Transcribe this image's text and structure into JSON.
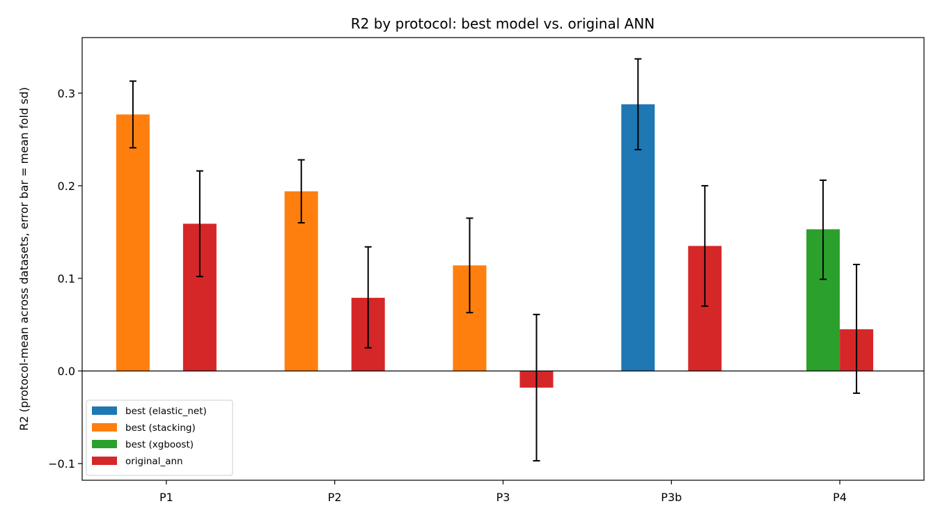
{
  "chart_data": {
    "type": "bar",
    "title": "R2 by protocol: best model vs. original ANN",
    "xlabel": "",
    "ylabel": "R2 (protocol-mean across datasets, error bar = mean fold sd)",
    "ylim": [
      -0.118,
      0.36
    ],
    "yticks": [
      -0.1,
      0.0,
      0.1,
      0.2,
      0.3
    ],
    "ytick_labels": [
      "−0.1",
      "0.0",
      "0.1",
      "0.2",
      "0.3"
    ],
    "categories": [
      "P1",
      "P2",
      "P3",
      "P3b",
      "P4"
    ],
    "grid": false,
    "legend_position": "lower-left",
    "bars": [
      {
        "category": "P1",
        "slot": "best",
        "series": "best (stacking)",
        "value": 0.277,
        "err_low": 0.241,
        "err_high": 0.313
      },
      {
        "category": "P1",
        "slot": "ann",
        "series": "original_ann",
        "value": 0.159,
        "err_low": 0.102,
        "err_high": 0.216
      },
      {
        "category": "P2",
        "slot": "best",
        "series": "best (stacking)",
        "value": 0.194,
        "err_low": 0.16,
        "err_high": 0.228
      },
      {
        "category": "P2",
        "slot": "ann",
        "series": "original_ann",
        "value": 0.079,
        "err_low": 0.025,
        "err_high": 0.134
      },
      {
        "category": "P3",
        "slot": "best",
        "series": "best (stacking)",
        "value": 0.114,
        "err_low": 0.063,
        "err_high": 0.165
      },
      {
        "category": "P3",
        "slot": "ann",
        "series": "original_ann",
        "value": -0.018,
        "err_low": -0.097,
        "err_high": 0.061
      },
      {
        "category": "P3b",
        "slot": "best",
        "series": "best (elastic_net)",
        "value": 0.288,
        "err_low": 0.239,
        "err_high": 0.337
      },
      {
        "category": "P3b",
        "slot": "ann",
        "series": "original_ann",
        "value": 0.135,
        "err_low": 0.07,
        "err_high": 0.2
      },
      {
        "category": "P4",
        "slot": "best",
        "series": "best (xgboost)",
        "value": 0.153,
        "err_low": 0.099,
        "err_high": 0.206
      },
      {
        "category": "P4",
        "slot": "ann",
        "series": "original_ann",
        "value": 0.045,
        "err_low": -0.024,
        "err_high": 0.115
      }
    ],
    "series": [
      {
        "name": "best (elastic_net)",
        "color": "#1f77b4"
      },
      {
        "name": "best (stacking)",
        "color": "#ff7f0e"
      },
      {
        "name": "best (xgboost)",
        "color": "#2ca02c"
      },
      {
        "name": "original_ann",
        "color": "#d62728"
      }
    ]
  }
}
